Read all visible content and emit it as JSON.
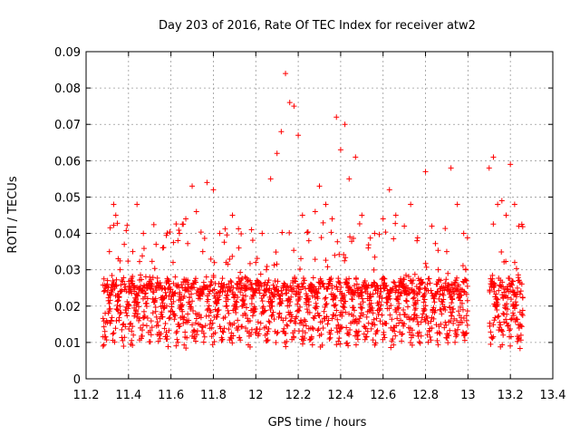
{
  "chart_data": {
    "type": "scatter",
    "title": "Day 203 of 2016, Rate Of TEC Index for receiver atw2",
    "xlabel": "GPS time / hours",
    "ylabel": "ROTI / TECUs",
    "xlim": [
      11.2,
      13.4
    ],
    "ylim": [
      0,
      0.09
    ],
    "xticks": [
      "11.2",
      "11.4",
      "11.6",
      "11.8",
      "12",
      "12.2",
      "12.4",
      "12.6",
      "12.8",
      "13",
      "13.2",
      "13.4"
    ],
    "yticks": [
      "0",
      "0.01",
      "0.02",
      "0.03",
      "0.04",
      "0.05",
      "0.06",
      "0.07",
      "0.08",
      "0.09"
    ],
    "grid": true,
    "marker": "+",
    "color": "#ff0000",
    "data_gap": [
      13.0,
      13.1
    ],
    "series": [
      {
        "name": "ROTI",
        "points": [
          [
            11.28,
            0.009
          ],
          [
            11.29,
            0.018
          ],
          [
            11.3,
            0.026
          ],
          [
            11.31,
            0.035
          ],
          [
            11.33,
            0.048
          ],
          [
            11.34,
            0.045
          ],
          [
            11.36,
            0.03
          ],
          [
            11.38,
            0.037
          ],
          [
            11.4,
            0.02
          ],
          [
            11.42,
            0.035
          ],
          [
            11.44,
            0.048
          ],
          [
            11.47,
            0.04
          ],
          [
            11.5,
            0.028
          ],
          [
            11.53,
            0.037
          ],
          [
            11.56,
            0.025
          ],
          [
            11.58,
            0.02
          ],
          [
            11.61,
            0.032
          ],
          [
            11.64,
            0.04
          ],
          [
            11.67,
            0.044
          ],
          [
            11.7,
            0.053
          ],
          [
            11.72,
            0.046
          ],
          [
            11.75,
            0.035
          ],
          [
            11.77,
            0.054
          ],
          [
            11.8,
            0.052
          ],
          [
            11.83,
            0.04
          ],
          [
            11.86,
            0.032
          ],
          [
            11.89,
            0.045
          ],
          [
            11.92,
            0.036
          ],
          [
            11.95,
            0.028
          ],
          [
            11.98,
            0.041
          ],
          [
            12.0,
            0.032
          ],
          [
            12.03,
            0.04
          ],
          [
            12.05,
            0.03
          ],
          [
            12.07,
            0.055
          ],
          [
            12.1,
            0.062
          ],
          [
            12.12,
            0.068
          ],
          [
            12.14,
            0.084
          ],
          [
            12.16,
            0.076
          ],
          [
            12.18,
            0.075
          ],
          [
            12.2,
            0.067
          ],
          [
            12.22,
            0.045
          ],
          [
            12.25,
            0.038
          ],
          [
            12.28,
            0.046
          ],
          [
            12.3,
            0.053
          ],
          [
            12.33,
            0.048
          ],
          [
            12.36,
            0.044
          ],
          [
            12.38,
            0.072
          ],
          [
            12.4,
            0.063
          ],
          [
            12.42,
            0.07
          ],
          [
            12.44,
            0.055
          ],
          [
            12.47,
            0.061
          ],
          [
            12.5,
            0.045
          ],
          [
            12.53,
            0.036
          ],
          [
            12.56,
            0.04
          ],
          [
            12.6,
            0.044
          ],
          [
            12.63,
            0.052
          ],
          [
            12.66,
            0.045
          ],
          [
            12.7,
            0.042
          ],
          [
            12.73,
            0.048
          ],
          [
            12.76,
            0.038
          ],
          [
            12.8,
            0.057
          ],
          [
            12.83,
            0.042
          ],
          [
            12.86,
            0.03
          ],
          [
            12.9,
            0.035
          ],
          [
            12.92,
            0.058
          ],
          [
            12.95,
            0.048
          ],
          [
            12.98,
            0.04
          ],
          [
            12.99,
            0.03
          ],
          [
            13.1,
            0.058
          ],
          [
            13.12,
            0.061
          ],
          [
            13.14,
            0.048
          ],
          [
            13.16,
            0.049
          ],
          [
            13.18,
            0.045
          ],
          [
            13.2,
            0.059
          ],
          [
            13.22,
            0.048
          ],
          [
            13.24,
            0.042
          ],
          [
            13.25,
            0.012
          ]
        ]
      }
    ],
    "noise_seed": 203
  }
}
